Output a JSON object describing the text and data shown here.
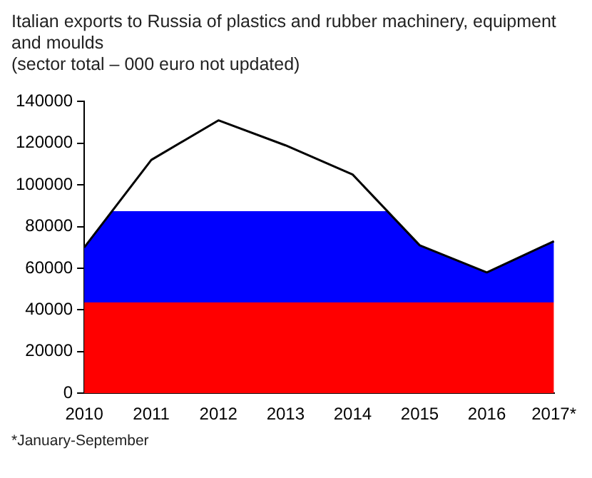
{
  "chart_data": {
    "type": "area",
    "title": "Italian exports to Russia of plastics and rubber machinery, equipment and moulds",
    "subtitle": "(sector total – 000 euro not updated)",
    "categories": [
      "2010",
      "2011",
      "2012",
      "2013",
      "2014",
      "2015",
      "2016",
      "2017*"
    ],
    "series": [
      {
        "color": "#000000",
        "values": [
          70000,
          112000,
          131000,
          119000,
          105000,
          71000,
          58000,
          73000
        ]
      }
    ],
    "ylim": [
      0,
      140000
    ],
    "yticks": [
      0,
      20000,
      40000,
      60000,
      80000,
      100000,
      120000,
      140000
    ],
    "grid": false,
    "legend": false,
    "annotations": [
      "*January-September"
    ]
  }
}
